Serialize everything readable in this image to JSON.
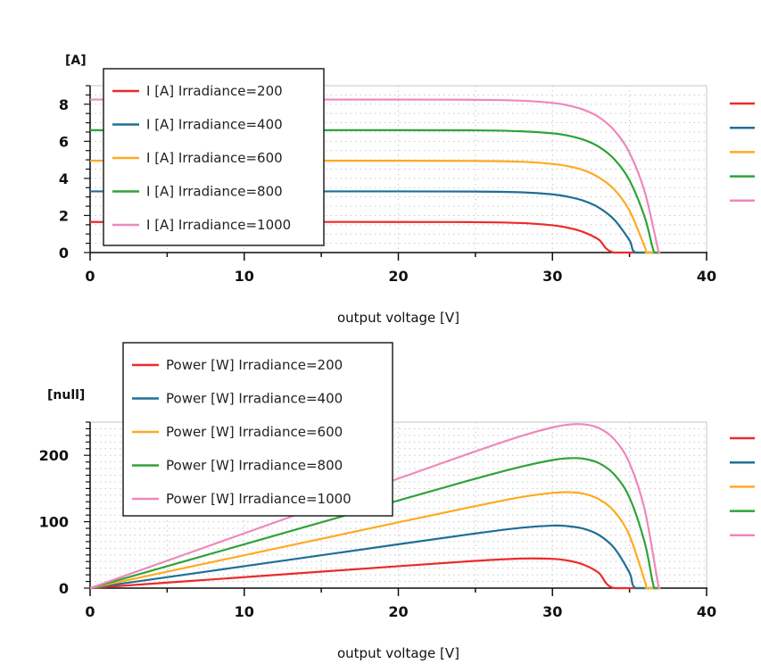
{
  "colors": {
    "series": [
      "#ee2a2a",
      "#1f6f96",
      "#ffaa22",
      "#2fa33a",
      "#ee88bb"
    ]
  },
  "chart_data": [
    {
      "type": "line",
      "ylabel": "[A]",
      "xlabel": "output voltage [V]",
      "xlim": [
        0,
        40
      ],
      "ylim": [
        0,
        9
      ],
      "xticks": [
        0,
        10,
        20,
        30,
        40
      ],
      "yticks": [
        0,
        2,
        4,
        6,
        8
      ],
      "grid": true,
      "legend": "top-left",
      "series": [
        {
          "name": "I [A] Irradiance=200",
          "x": [
            0,
            10,
            20,
            25,
            28,
            30,
            31,
            32,
            33,
            34,
            37
          ],
          "y": [
            1.65,
            1.65,
            1.65,
            1.64,
            1.59,
            1.47,
            1.34,
            1.11,
            0.7,
            0,
            0
          ]
        },
        {
          "name": "I [A] Irradiance=400",
          "x": [
            0,
            10,
            20,
            25,
            28,
            30,
            31,
            32,
            33,
            34,
            35,
            35.4,
            37
          ],
          "y": [
            3.3,
            3.3,
            3.3,
            3.29,
            3.25,
            3.14,
            3.01,
            2.8,
            2.43,
            1.78,
            0.66,
            0,
            0
          ]
        },
        {
          "name": "I [A] Irradiance=600",
          "x": [
            0,
            10,
            20,
            25,
            28,
            30,
            31,
            32,
            33,
            34,
            35,
            36,
            36.1,
            37
          ],
          "y": [
            4.95,
            4.95,
            4.95,
            4.94,
            4.9,
            4.78,
            4.66,
            4.45,
            4.06,
            3.41,
            2.26,
            0.27,
            0,
            0
          ]
        },
        {
          "name": "I [A] Irradiance=800",
          "x": [
            0,
            10,
            20,
            25,
            28,
            30,
            31,
            32,
            33,
            34,
            35,
            36,
            36.6,
            37
          ],
          "y": [
            6.6,
            6.6,
            6.6,
            6.59,
            6.54,
            6.43,
            6.31,
            6.09,
            5.71,
            5.04,
            3.89,
            1.87,
            0,
            0
          ]
        },
        {
          "name": "I [A] Irradiance=1000",
          "x": [
            0,
            10,
            20,
            25,
            28,
            30,
            31,
            32,
            33,
            34,
            35,
            36,
            36.9,
            37
          ],
          "y": [
            8.25,
            8.25,
            8.25,
            8.24,
            8.19,
            8.07,
            7.94,
            7.71,
            7.31,
            6.6,
            5.38,
            3.24,
            0,
            0
          ]
        }
      ]
    },
    {
      "type": "line",
      "ylabel": "[null]",
      "xlabel": "output voltage [V]",
      "xlim": [
        0,
        40
      ],
      "ylim": [
        0,
        250
      ],
      "xticks": [
        0,
        10,
        20,
        30,
        40
      ],
      "yticks": [
        0,
        100,
        200
      ],
      "grid": true,
      "legend": "top-left",
      "series": [
        {
          "name": "Power [W] Irradiance=200",
          "x": [
            0,
            10,
            20,
            25,
            28,
            30,
            31,
            32,
            33,
            34,
            37
          ],
          "y": [
            0,
            16.5,
            33,
            41,
            44.5,
            44.1,
            41.5,
            35.5,
            23.1,
            0,
            0
          ]
        },
        {
          "name": "Power [W] Irradiance=400",
          "x": [
            0,
            10,
            20,
            25,
            28,
            30,
            31,
            32,
            33,
            34,
            35,
            35.4,
            37
          ],
          "y": [
            0,
            33,
            66,
            82.3,
            91,
            94.2,
            93.3,
            89.6,
            80.2,
            60.5,
            23.1,
            0,
            0
          ]
        },
        {
          "name": "Power [W] Irradiance=600",
          "x": [
            0,
            10,
            20,
            25,
            28,
            30,
            31,
            32,
            33,
            34,
            35,
            36,
            36.1,
            37
          ],
          "y": [
            0,
            49.5,
            99,
            123.5,
            137.2,
            143.4,
            144.5,
            142.4,
            134,
            115.9,
            79.1,
            9.7,
            0,
            0
          ]
        },
        {
          "name": "Power [W] Irradiance=800",
          "x": [
            0,
            10,
            20,
            25,
            28,
            30,
            31,
            32,
            33,
            34,
            35,
            36,
            36.6,
            37
          ],
          "y": [
            0,
            66,
            132,
            164.8,
            183.1,
            192.9,
            195.6,
            194.9,
            188.4,
            171.4,
            136.2,
            67.3,
            0,
            0
          ]
        },
        {
          "name": "Power [W] Irradiance=1000",
          "x": [
            0,
            10,
            20,
            25,
            28,
            30,
            31,
            32,
            33,
            34,
            35,
            36,
            36.9,
            37
          ],
          "y": [
            0,
            82.5,
            165,
            206,
            229.3,
            242.1,
            246.1,
            246.7,
            241.2,
            224.4,
            188.3,
            116.6,
            0,
            0
          ]
        }
      ]
    }
  ]
}
